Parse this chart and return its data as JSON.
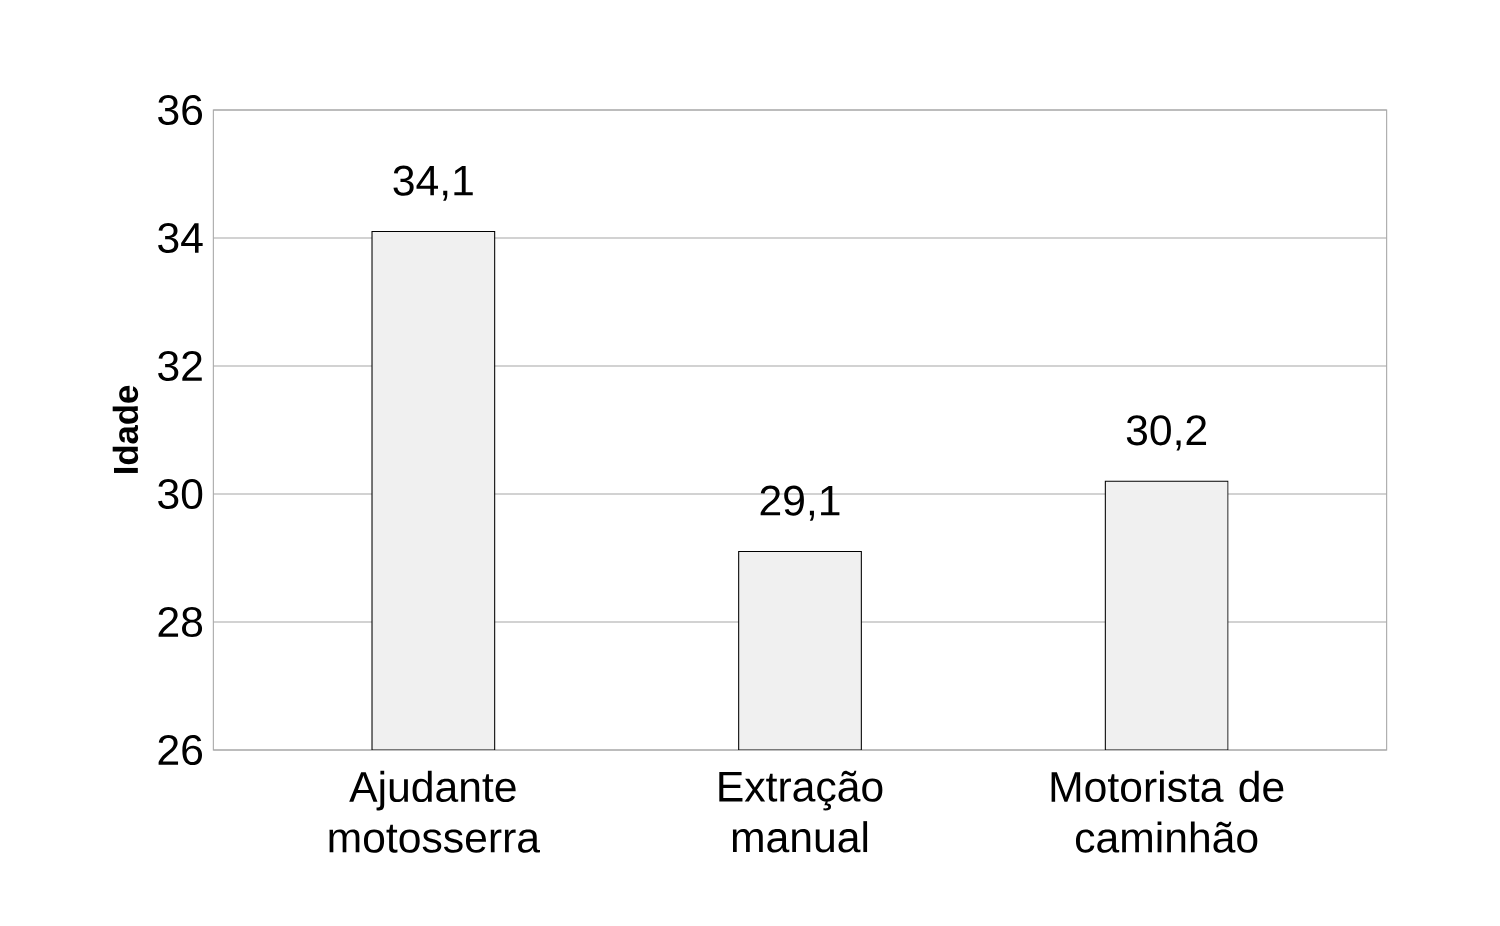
{
  "chart_data": {
    "type": "bar",
    "ylabel": "Idade",
    "categories": [
      "Ajudante motosserra",
      "Extração manual",
      "Motorista de caminhão"
    ],
    "values": [
      34.1,
      29.1,
      30.2
    ],
    "value_labels": [
      "34,1",
      "29,1",
      "30,2"
    ],
    "color": "#f0f0f0",
    "ylim": [
      26,
      36
    ],
    "yticks": [
      26,
      28,
      30,
      32,
      34,
      36
    ],
    "grid": "y"
  }
}
